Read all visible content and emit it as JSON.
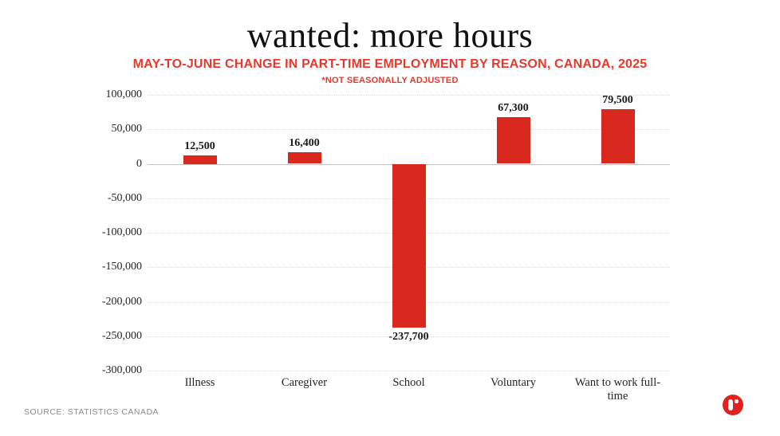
{
  "header": {
    "title": "wanted: more hours",
    "subtitle": "MAY-TO-JUNE CHANGE IN PART-TIME EMPLOYMENT BY REASON, CANADA, 2025",
    "note": "*NOT SEASONALLY ADJUSTED"
  },
  "chart_data": {
    "type": "bar",
    "title": "wanted: more hours",
    "subtitle": "MAY-TO-JUNE CHANGE IN PART-TIME EMPLOYMENT BY REASON, CANADA, 2025",
    "note": "*NOT SEASONALLY ADJUSTED",
    "categories": [
      "Illness",
      "Caregiver",
      "School",
      "Voluntary",
      "Want to work full-time"
    ],
    "values": [
      12500,
      16400,
      -237700,
      67300,
      79500
    ],
    "data_labels": [
      "12,500",
      "16,400",
      "-237,700",
      "67,300",
      "79,500"
    ],
    "xlabel": "",
    "ylabel": "",
    "ylim": [
      -300000,
      100000
    ],
    "ytick_step": 50000,
    "grid": "horizontal-dotted",
    "legend": "none",
    "bar_color": "#d9291e"
  },
  "footer": {
    "source": "SOURCE: STATISTICS CANADA",
    "logo": "r-dot-logo"
  },
  "colors": {
    "accent_red": "#e8382c",
    "bar_red": "#d9291e",
    "text_dark": "#1a1a1a",
    "grid_gray": "#dcdcdc",
    "zero_line_gray": "#c3c3c3",
    "source_gray": "#8c8c8c"
  }
}
